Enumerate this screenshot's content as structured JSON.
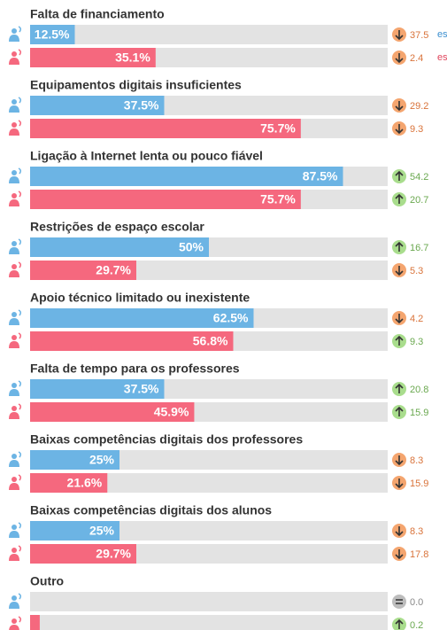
{
  "chart_data": {
    "type": "bar",
    "orientation": "horizontal",
    "xlim": [
      0,
      100
    ],
    "track_color": "#e3e3e3",
    "categories": [
      "Falta de financiamento",
      "Equipamentos digitais insuficientes",
      "Ligação à Internet lenta ou pouco fiável",
      "Restrições de espaço escolar",
      "Apoio técnico limitado ou inexistente",
      "Falta de tempo para os professores",
      "Baixas competências digitais dos professores",
      "Baixas competências digitais dos alunos",
      "Outro"
    ],
    "series": [
      {
        "color": "#6cb4e4",
        "values": [
          12.5,
          37.5,
          87.5,
          50,
          62.5,
          37.5,
          25,
          25,
          0
        ],
        "value_labels": [
          "12.5%",
          "37.5%",
          "87.5%",
          "50%",
          "62.5%",
          "37.5%",
          "25%",
          "25%",
          null
        ],
        "changes": [
          {
            "value": 37.5,
            "direction": "down"
          },
          {
            "value": 29.2,
            "direction": "down"
          },
          {
            "value": 54.2,
            "direction": "up"
          },
          {
            "value": 16.7,
            "direction": "up"
          },
          {
            "value": 4.2,
            "direction": "down"
          },
          {
            "value": 20.8,
            "direction": "up"
          },
          {
            "value": 8.3,
            "direction": "down"
          },
          {
            "value": 8.3,
            "direction": "down"
          },
          {
            "value": 0,
            "label": "0.0",
            "direction": "equal"
          }
        ]
      },
      {
        "color": "#f5687e",
        "values": [
          35.1,
          75.7,
          75.7,
          29.7,
          56.8,
          45.9,
          21.6,
          29.7,
          2.7
        ],
        "value_labels": [
          "35.1%",
          "75.7%",
          "75.7%",
          "29.7%",
          "56.8%",
          "45.9%",
          "21.6%",
          "29.7%",
          null
        ],
        "changes": [
          {
            "value": 2.4,
            "direction": "down"
          },
          {
            "value": 9.3,
            "direction": "down"
          },
          {
            "value": 20.7,
            "direction": "up"
          },
          {
            "value": 5.3,
            "direction": "down"
          },
          {
            "value": 9.3,
            "direction": "up"
          },
          {
            "value": 15.9,
            "direction": "up"
          },
          {
            "value": 15.9,
            "direction": "down"
          },
          {
            "value": 17.8,
            "direction": "down"
          },
          {
            "value": 0.2,
            "direction": "up"
          }
        ]
      }
    ],
    "annotations": [
      {
        "text": "es",
        "color": "#3b8fd0"
      },
      {
        "text": "es",
        "color": "#e0455c"
      }
    ],
    "direction_colors": {
      "up": {
        "circle": "#a9dd8d",
        "text": "#6aa84f"
      },
      "down": {
        "circle": "#f4a56f",
        "text": "#d9733a"
      },
      "equal": {
        "circle": "#bdbdbd",
        "text": "#888888"
      }
    }
  }
}
